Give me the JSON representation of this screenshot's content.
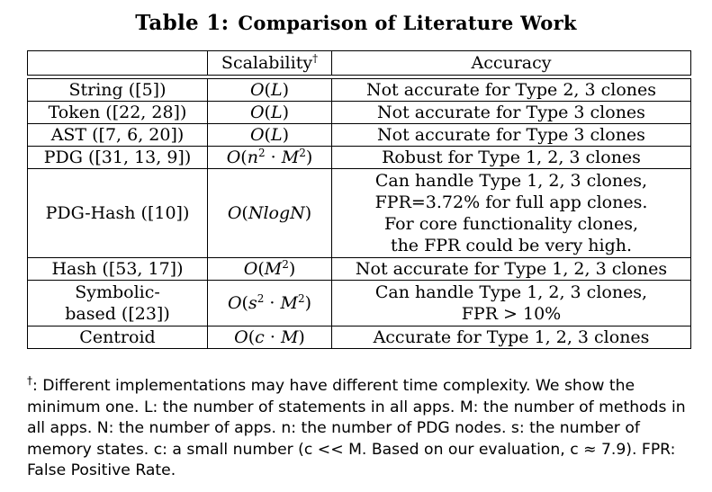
{
  "caption": {
    "label": "Table 1:",
    "title": "Comparison of Literature Work"
  },
  "table": {
    "headers": [
      "",
      "Scalability",
      "Accuracy"
    ],
    "header_mark": "†",
    "rows": [
      {
        "method": "String ([5])",
        "scalability": "O(L)",
        "accuracy": [
          "Not accurate for Type 2, 3 clones"
        ]
      },
      {
        "method": "Token ([22, 28])",
        "scalability": "O(L)",
        "accuracy": [
          "Not accurate for Type 3 clones"
        ]
      },
      {
        "method": "AST ([7, 6, 20])",
        "scalability": "O(L)",
        "accuracy": [
          "Not accurate for Type 3 clones"
        ]
      },
      {
        "method": "PDG ([31, 13, 9])",
        "scalability": "O(n² · M²)",
        "accuracy": [
          "Robust for Type 1, 2, 3 clones"
        ]
      },
      {
        "method": "PDG-Hash ([10])",
        "scalability": "O(NlogN)",
        "accuracy": [
          "Can handle Type 1, 2, 3 clones,",
          "FPR=3.72% for full app clones.",
          "For core functionality clones,",
          "the FPR could be very high."
        ]
      },
      {
        "method": "Hash ([53, 17])",
        "scalability": "O(M²)",
        "accuracy": [
          "Not accurate for Type 1, 2, 3 clones"
        ]
      },
      {
        "method": [
          "Symbolic-",
          "based ([23])"
        ],
        "scalability": "O(s² · M²)",
        "accuracy": [
          "Can handle Type 1, 2, 3 clones,",
          "FPR > 10%"
        ]
      },
      {
        "method": "Centroid",
        "scalability": "O(c · M)",
        "accuracy": [
          "Accurate for Type 1, 2, 3 clones"
        ]
      }
    ]
  },
  "footnote": {
    "mark": "†",
    "text": ": Different implementations may have different time complexity. We show the minimum one. L: the number of statements in all apps. M: the number of methods in all apps. N: the number of apps. n: the number of PDG nodes. s: the number of memory states. c: a small number (c << M. Based on our evaluation, c ≈ 7.9). FPR: False Positive Rate."
  }
}
